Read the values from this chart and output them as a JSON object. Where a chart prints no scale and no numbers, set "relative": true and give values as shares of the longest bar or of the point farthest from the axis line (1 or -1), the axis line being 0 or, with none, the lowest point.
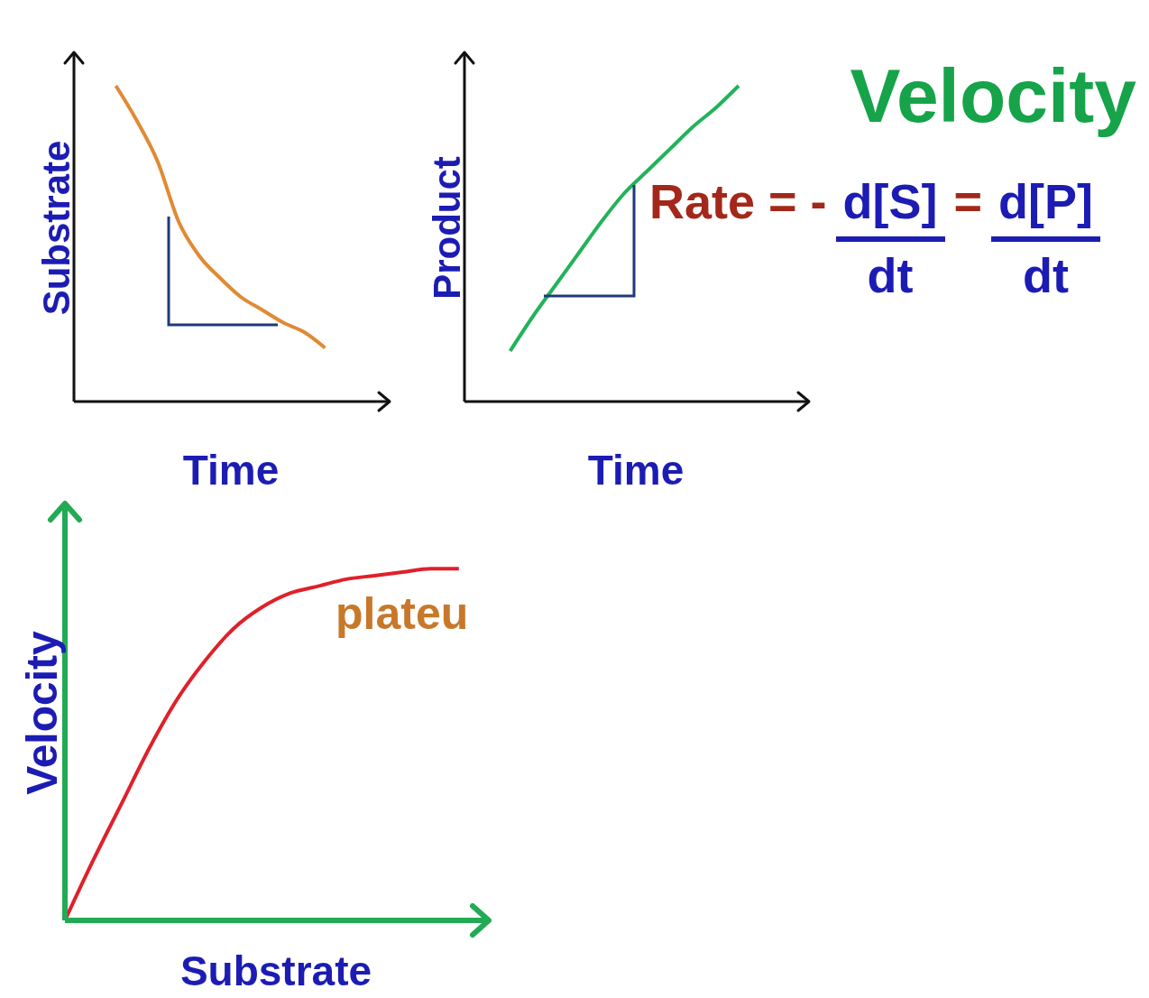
{
  "chart_data": [
    {
      "type": "line",
      "xlabel": "Time",
      "ylabel": "Substrate",
      "relative": true,
      "categories": [
        null,
        null,
        null,
        null,
        null,
        null,
        null,
        null,
        null,
        null,
        null,
        null,
        null,
        null,
        null,
        null
      ],
      "series": [
        {
          "color": "#e08a35",
          "values": [
            null,
            null,
            1,
            0.89,
            0.76,
            0.57,
            0.46,
            0.39,
            0.33,
            0.29,
            0.25,
            0.22,
            0.17,
            null,
            null,
            null
          ]
        }
      ]
    },
    {
      "type": "line",
      "xlabel": "Time",
      "ylabel": "Product",
      "relative": true,
      "categories": [
        null,
        null,
        null,
        null,
        null,
        null,
        null,
        null,
        null,
        null,
        null,
        null,
        null,
        null,
        null,
        null
      ],
      "series": [
        {
          "color": "#22b35a",
          "values": [
            null,
            null,
            0.16,
            0.27,
            0.37,
            0.47,
            0.57,
            0.66,
            0.73,
            0.8,
            0.87,
            0.93,
            1,
            null,
            null,
            null
          ]
        }
      ]
    },
    {
      "type": "line",
      "xlabel": "Substrate",
      "ylabel": "Velocity",
      "relative": true,
      "categories": [
        null,
        null,
        null,
        null,
        null,
        null,
        null,
        null,
        null,
        null,
        null,
        null,
        null,
        null,
        null,
        null
      ],
      "series": [
        {
          "color": "#e0202a",
          "values": [
            0,
            0.17,
            0.33,
            0.49,
            0.63,
            0.74,
            0.83,
            0.89,
            0.93,
            0.95,
            0.97,
            0.98,
            0.99,
            1,
            1,
            null
          ]
        }
      ],
      "annotations": [
        "plateu"
      ]
    },
    {
      "type": "other",
      "title": "Velocity",
      "annotations": [
        "Rate = -",
        "d[S]",
        "dt",
        "=",
        "d[P]",
        "dt"
      ]
    }
  ]
}
